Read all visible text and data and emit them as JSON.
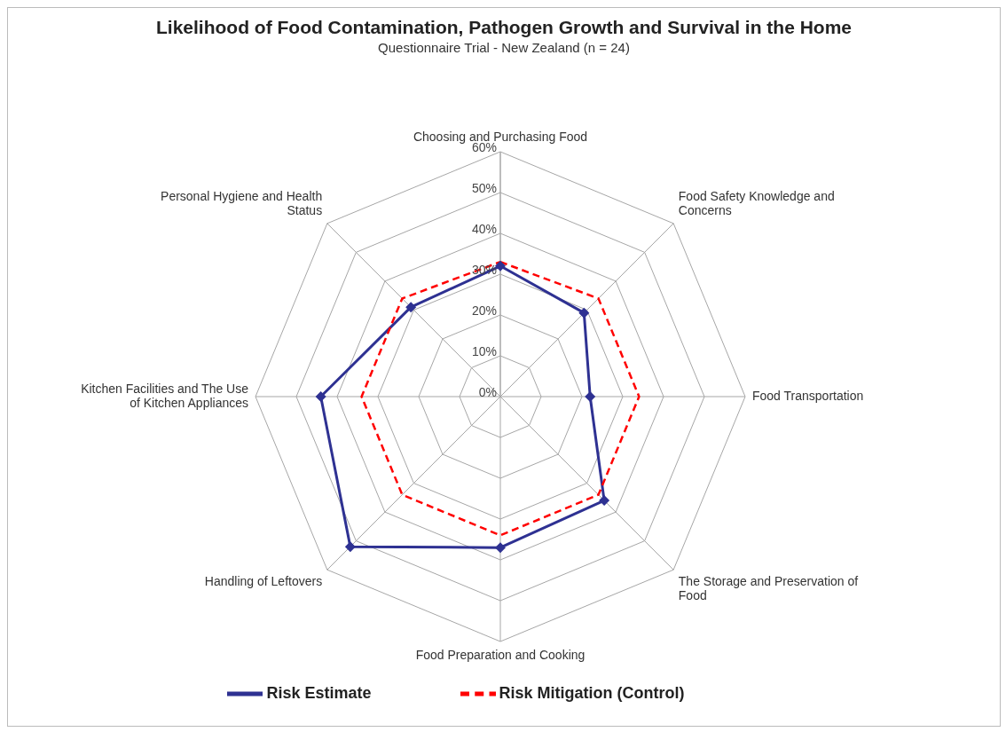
{
  "chart_data": {
    "type": "radar",
    "title": "Likelihood of Food Contamination, Pathogen Growth and Survival in the Home",
    "subtitle": "Questionnaire Trial - New Zealand (n = 24)",
    "categories": [
      "Choosing and Purchasing Food",
      "Food Safety Knowledge and Concerns",
      "Food Transportation",
      "The Storage and Preservation of Food",
      "Food Preparation and Cooking",
      "Handling of Leftovers",
      "Kitchen Facilities and The Use of Kitchen Appliances",
      "Personal Hygiene and Health Status"
    ],
    "series": [
      {
        "name": "Risk Estimate",
        "color": "#2e3192",
        "values": [
          32,
          29,
          22,
          36,
          37,
          52,
          44,
          31
        ],
        "marker": "diamond",
        "line_style": "solid"
      },
      {
        "name": "Risk Mitigation (Control)",
        "color": "#ff0000",
        "values": [
          33,
          34,
          34,
          34,
          34,
          34,
          34,
          34
        ],
        "marker": "none",
        "line_style": "dashed"
      }
    ],
    "ylim": [
      0,
      60
    ],
    "yticks": [
      {
        "value": 0,
        "label": "0%"
      },
      {
        "value": 10,
        "label": "10%"
      },
      {
        "value": 20,
        "label": "20%"
      },
      {
        "value": 30,
        "label": "30%"
      },
      {
        "value": 40,
        "label": "40%"
      },
      {
        "value": 50,
        "label": "50%"
      },
      {
        "value": 60,
        "label": "60%"
      }
    ],
    "grid": true,
    "legend": "bottom"
  }
}
